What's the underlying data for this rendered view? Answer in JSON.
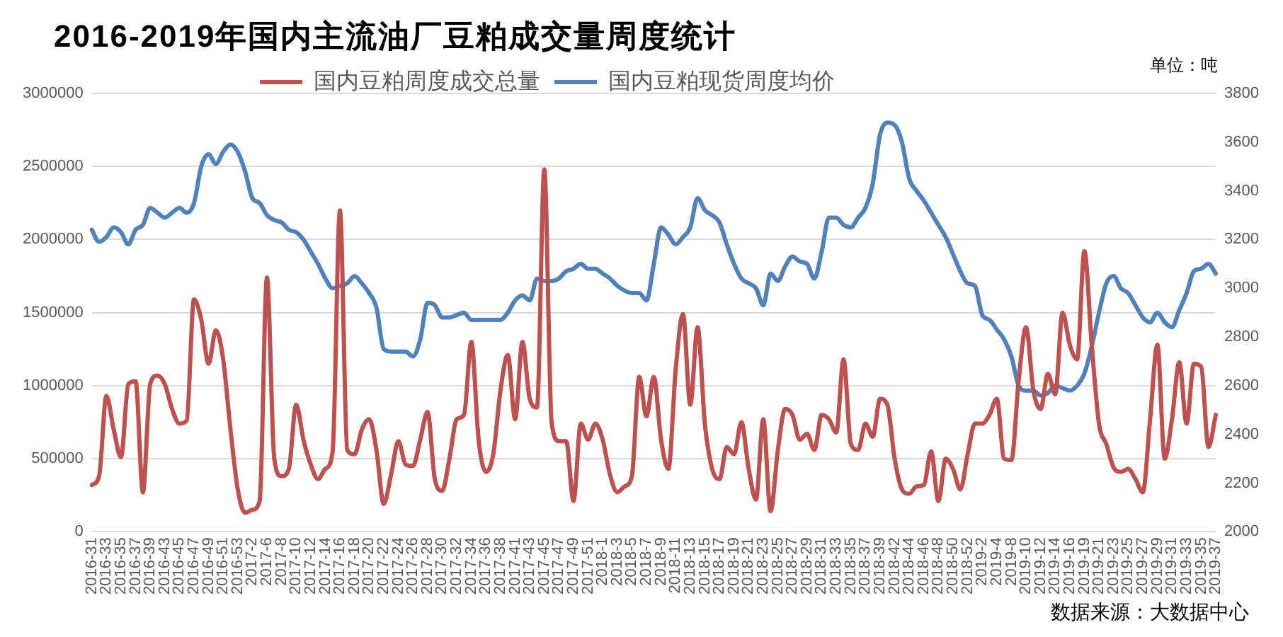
{
  "chart_data": {
    "type": "line",
    "title": "2016-2019年国内主流油厂豆粕成交量周度统计",
    "annotations": [
      "单位：吨",
      "数据来源：大数据中心"
    ],
    "categories": [
      "2016-31",
      null,
      "2016-33",
      null,
      "2016-35",
      null,
      "2016-37",
      null,
      "2016-39",
      null,
      "2016-43",
      null,
      "2016-45",
      null,
      "2016-47",
      null,
      "2016-49",
      null,
      "2016-51",
      null,
      "2016-53",
      null,
      "2017-2",
      null,
      "2017-6",
      null,
      "2017-8",
      null,
      "2017-10",
      null,
      "2017-12",
      null,
      "2017-14",
      null,
      "2017-16",
      null,
      "2017-18",
      null,
      "2017-20",
      null,
      "2017-22",
      null,
      "2017-24",
      null,
      "2017-26",
      null,
      "2017-28",
      null,
      "2017-30",
      null,
      "2017-32",
      null,
      "2017-34",
      null,
      "2017-36",
      null,
      "2017-38",
      null,
      "2017-41",
      null,
      "2017-43",
      null,
      "2017-45",
      null,
      "2017-47",
      null,
      "2017-49",
      null,
      "2017-51",
      null,
      "2018-1",
      null,
      "2018-3",
      null,
      "2018-5",
      null,
      "2018-7",
      null,
      "2018-9",
      null,
      "2018-11",
      null,
      "2018-13",
      null,
      "2018-15",
      null,
      "2018-17",
      null,
      "2018-19",
      null,
      "2018-21",
      null,
      "2018-23",
      null,
      "2018-25",
      null,
      "2018-27",
      null,
      "2018-29",
      null,
      "2018-31",
      null,
      "2018-33",
      null,
      "2018-35",
      null,
      "2018-37",
      null,
      "2018-39",
      null,
      "2018-42",
      null,
      "2018-44",
      null,
      "2018-46",
      null,
      "2018-48",
      null,
      "2018-50",
      null,
      "2018-52",
      null,
      "2019-2",
      null,
      "2019-4",
      null,
      "2019-8",
      null,
      "2019-10",
      null,
      "2019-12",
      null,
      "2019-14",
      null,
      "2019-16",
      null,
      "2019-19",
      null,
      "2019-21",
      null,
      "2019-23",
      null,
      "2019-25",
      null,
      "2019-27",
      null,
      "2019-29",
      null,
      "2019-31",
      null,
      "2019-33",
      null,
      "2019-35",
      null,
      "2019-37"
    ],
    "series": [
      {
        "name": "国内豆粕周度成交总量",
        "color": "#c0504d",
        "values": [
          320000,
          380000,
          930000,
          700000,
          510000,
          1010000,
          1030000,
          270000,
          1010000,
          1070000,
          1010000,
          840000,
          740000,
          760000,
          1590000,
          1450000,
          1150000,
          1380000,
          1180000,
          700000,
          290000,
          130000,
          150000,
          210000,
          1740000,
          500000,
          380000,
          430000,
          870000,
          630000,
          460000,
          360000,
          430000,
          550000,
          2200000,
          560000,
          530000,
          700000,
          770000,
          560000,
          190000,
          390000,
          620000,
          460000,
          450000,
          630000,
          820000,
          360000,
          280000,
          500000,
          770000,
          800000,
          1300000,
          630000,
          410000,
          530000,
          970000,
          1210000,
          770000,
          1300000,
          910000,
          850000,
          2480000,
          750000,
          620000,
          620000,
          210000,
          740000,
          630000,
          740000,
          630000,
          390000,
          270000,
          310000,
          380000,
          1060000,
          790000,
          1060000,
          630000,
          430000,
          1110000,
          1490000,
          870000,
          1400000,
          740000,
          430000,
          360000,
          580000,
          530000,
          750000,
          430000,
          220000,
          770000,
          140000,
          560000,
          840000,
          800000,
          630000,
          670000,
          560000,
          800000,
          770000,
          680000,
          1180000,
          600000,
          560000,
          740000,
          650000,
          910000,
          870000,
          500000,
          290000,
          260000,
          310000,
          320000,
          550000,
          210000,
          500000,
          430000,
          290000,
          530000,
          740000,
          740000,
          800000,
          910000,
          500000,
          490000,
          1040000,
          1400000,
          970000,
          840000,
          1080000,
          940000,
          1500000,
          1280000,
          1180000,
          1920000,
          1280000,
          740000,
          600000,
          440000,
          410000,
          430000,
          360000,
          270000,
          770000,
          1280000,
          500000,
          770000,
          1160000,
          740000,
          1150000,
          1130000,
          580000,
          800000
        ]
      },
      {
        "name": "国内豆粕现货周度均价",
        "color": "#4f81bd",
        "axis": "y2",
        "values": [
          3240,
          3190,
          3210,
          3250,
          3230,
          3180,
          3240,
          3260,
          3330,
          3310,
          3290,
          3310,
          3330,
          3310,
          3350,
          3500,
          3550,
          3510,
          3560,
          3590,
          3560,
          3480,
          3370,
          3350,
          3300,
          3280,
          3270,
          3240,
          3230,
          3200,
          3150,
          3100,
          3040,
          3000,
          3010,
          3020,
          3050,
          3020,
          2980,
          2920,
          2750,
          2740,
          2740,
          2740,
          2720,
          2790,
          2940,
          2930,
          2880,
          2880,
          2890,
          2900,
          2870,
          2870,
          2870,
          2870,
          2870,
          2900,
          2950,
          2970,
          2950,
          3040,
          3030,
          3030,
          3040,
          3070,
          3080,
          3100,
          3080,
          3080,
          3060,
          3040,
          3010,
          2990,
          2980,
          2980,
          2950,
          3100,
          3250,
          3220,
          3180,
          3210,
          3250,
          3370,
          3320,
          3300,
          3270,
          3180,
          3100,
          3040,
          3020,
          3000,
          2930,
          3060,
          3030,
          3090,
          3130,
          3110,
          3100,
          3040,
          3150,
          3290,
          3290,
          3260,
          3250,
          3290,
          3330,
          3430,
          3630,
          3680,
          3670,
          3600,
          3450,
          3400,
          3360,
          3310,
          3260,
          3210,
          3140,
          3070,
          3020,
          3010,
          2890,
          2870,
          2830,
          2790,
          2720,
          2600,
          2580,
          2580,
          2560,
          2570,
          2600,
          2590,
          2580,
          2600,
          2650,
          2760,
          2900,
          3020,
          3050,
          3000,
          2980,
          2930,
          2880,
          2860,
          2900,
          2860,
          2840,
          2910,
          2980,
          3070,
          3080,
          3100,
          3060
        ]
      }
    ],
    "ylim": [
      0,
      3000000
    ],
    "yticks": [
      0,
      500000,
      1000000,
      1500000,
      2000000,
      2500000,
      3000000
    ],
    "y2lim": [
      2000,
      3800
    ],
    "y2ticks": [
      2000,
      2200,
      2400,
      2600,
      2800,
      3000,
      3200,
      3400,
      3600,
      3800
    ],
    "grid": "y",
    "legend": "top",
    "marker": "none"
  }
}
